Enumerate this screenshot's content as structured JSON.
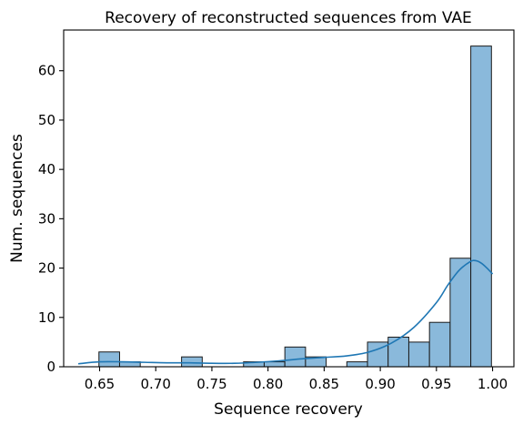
{
  "chart_data": {
    "type": "bar",
    "title": "Recovery of reconstructed sequences from VAE",
    "xlabel": "Sequence recovery",
    "ylabel": "Num. sequences",
    "xlim": [
      0.618,
      1.019
    ],
    "ylim": [
      0,
      68.25
    ],
    "xticks": [
      "0.65",
      "0.70",
      "0.75",
      "0.80",
      "0.85",
      "0.90",
      "0.95",
      "1.00"
    ],
    "yticks": [
      "0",
      "10",
      "20",
      "30",
      "40",
      "50",
      "60"
    ],
    "xtick_values": [
      0.65,
      0.7,
      0.75,
      0.8,
      0.85,
      0.9,
      0.95,
      1.0
    ],
    "ytick_values": [
      0,
      10,
      20,
      30,
      40,
      50,
      60
    ],
    "bin_start": 0.631,
    "bin_width": 0.0184,
    "counts": [
      0,
      3,
      1,
      0,
      0,
      2,
      0,
      0,
      1,
      1,
      4,
      2,
      0,
      1,
      5,
      6,
      5,
      9,
      22,
      65
    ],
    "kde_curve": {
      "x": [
        0.631,
        0.65,
        0.67,
        0.69,
        0.71,
        0.73,
        0.75,
        0.77,
        0.79,
        0.81,
        0.83,
        0.85,
        0.87,
        0.89,
        0.91,
        0.93,
        0.95,
        0.96,
        0.97,
        0.98,
        0.985,
        0.99,
        0.995,
        1.0
      ],
      "y": [
        0.6,
        1.0,
        1.0,
        0.9,
        0.8,
        0.8,
        0.7,
        0.7,
        0.9,
        1.2,
        1.6,
        1.9,
        2.2,
        3.0,
        4.8,
        8.0,
        13.0,
        16.5,
        19.5,
        21.3,
        21.5,
        21.0,
        20.0,
        18.8
      ]
    },
    "colors": {
      "bar": "#8ab9db",
      "edge": "#1a1a1a",
      "kde": "#1f77b4"
    },
    "grid": false,
    "legend": "none"
  }
}
